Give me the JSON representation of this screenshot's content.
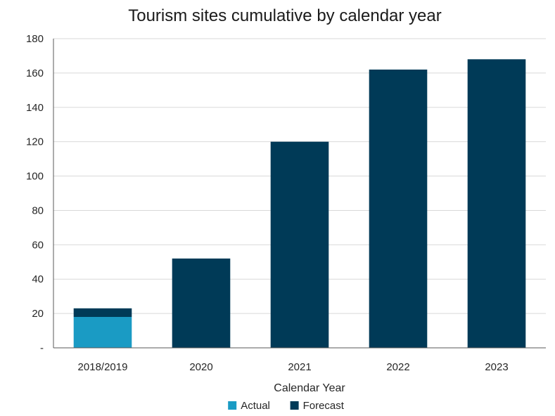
{
  "chart_data": {
    "type": "bar",
    "stacked": true,
    "title": "Tourism sites cumulative by calendar year",
    "xlabel": "Calendar Year",
    "ylabel": "",
    "categories": [
      "2018/2019",
      "2020",
      "2021",
      "2022",
      "2023"
    ],
    "series": [
      {
        "name": "Actual",
        "color": "#1a9bc4",
        "values": [
          18,
          0,
          0,
          0,
          0
        ]
      },
      {
        "name": "Forecast",
        "color": "#003a57",
        "values": [
          5,
          52,
          120,
          162,
          168
        ]
      }
    ],
    "ylim": [
      0,
      180
    ],
    "yticks": [
      0,
      20,
      40,
      60,
      80,
      100,
      120,
      140,
      160,
      180
    ],
    "ytick_labels": [
      "-",
      "20",
      "40",
      "60",
      "80",
      "100",
      "120",
      "140",
      "160",
      "180"
    ],
    "grid": true,
    "legend": "bottom-center"
  }
}
